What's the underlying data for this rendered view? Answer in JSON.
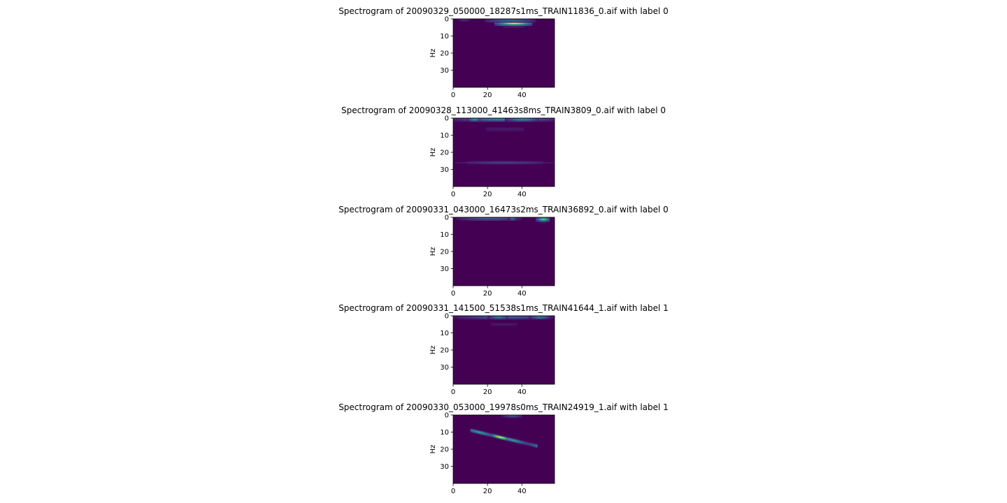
{
  "chart_data": [
    {
      "type": "heatmap",
      "title": "Spectrogram of 20090329_050000_18287s1ms_TRAIN11836_0.aif with label 0",
      "ylabel": "Hz",
      "xlabel": "",
      "xlim": [
        0,
        59
      ],
      "ylim": [
        40,
        0
      ],
      "xticks": [
        0,
        20,
        40
      ],
      "yticks": [
        0,
        10,
        20,
        30
      ],
      "colormap": "viridis",
      "background": "#440154",
      "blobs": [
        {
          "t0": 24,
          "t1": 46,
          "f": 2.5,
          "peak": 1.0,
          "spread_f": 1.0
        },
        {
          "t0": 18,
          "t1": 48,
          "f": 1.0,
          "peak": 0.35,
          "spread_f": 0.8
        },
        {
          "t0": 2,
          "t1": 10,
          "f": 0.5,
          "peak": 0.15,
          "spread_f": 0.6
        }
      ]
    },
    {
      "type": "heatmap",
      "title": "Spectrogram of 20090328_113000_41463s8ms_TRAIN3809_0.aif with label 0",
      "ylabel": "Hz",
      "xlabel": "",
      "xlim": [
        0,
        59
      ],
      "ylim": [
        40,
        0
      ],
      "xticks": [
        0,
        20,
        40
      ],
      "yticks": [
        0,
        10,
        20,
        30
      ],
      "colormap": "viridis",
      "background": "#440154",
      "blobs": [
        {
          "t0": 0,
          "t1": 59,
          "f": 0.8,
          "peak": 0.45,
          "spread_f": 0.8
        },
        {
          "t0": 8,
          "t1": 16,
          "f": 0.8,
          "peak": 0.55,
          "spread_f": 0.7
        },
        {
          "t0": 30,
          "t1": 50,
          "f": 0.8,
          "peak": 0.5,
          "spread_f": 0.7
        },
        {
          "t0": 0,
          "t1": 59,
          "f": 26.0,
          "peak": 0.2,
          "spread_f": 0.6
        },
        {
          "t0": 0,
          "t1": 59,
          "f": 6.5,
          "peak": 0.06,
          "spread_f": 2.0
        }
      ]
    },
    {
      "type": "heatmap",
      "title": "Spectrogram of 20090331_043000_16473s2ms_TRAIN36892_0.aif with label 0",
      "ylabel": "Hz",
      "xlabel": "",
      "xlim": [
        0,
        59
      ],
      "ylim": [
        40,
        0
      ],
      "xticks": [
        0,
        20,
        40
      ],
      "yticks": [
        0,
        10,
        20,
        30
      ],
      "colormap": "viridis",
      "background": "#440154",
      "blobs": [
        {
          "t0": 48,
          "t1": 56,
          "f": 1.2,
          "peak": 0.75,
          "spread_f": 0.9
        },
        {
          "t0": 2,
          "t1": 40,
          "f": 0.8,
          "peak": 0.3,
          "spread_f": 0.7
        },
        {
          "t0": 32,
          "t1": 36,
          "f": 0.8,
          "peak": 0.4,
          "spread_f": 0.7
        }
      ]
    },
    {
      "type": "heatmap",
      "title": "Spectrogram of 20090331_141500_51538s1ms_TRAIN41644_1.aif with label 1",
      "ylabel": "Hz",
      "xlabel": "",
      "xlim": [
        0,
        59
      ],
      "ylim": [
        40,
        0
      ],
      "xticks": [
        0,
        20,
        40
      ],
      "yticks": [
        0,
        10,
        20,
        30
      ],
      "colormap": "viridis",
      "background": "#440154",
      "blobs": [
        {
          "t0": 0,
          "t1": 59,
          "f": 0.8,
          "peak": 0.3,
          "spread_f": 0.8
        },
        {
          "t0": 20,
          "t1": 32,
          "f": 0.8,
          "peak": 0.45,
          "spread_f": 0.7
        },
        {
          "t0": 44,
          "t1": 56,
          "f": 0.8,
          "peak": 0.45,
          "spread_f": 0.7
        },
        {
          "t0": 8,
          "t1": 50,
          "f": 5.0,
          "peak": 0.06,
          "spread_f": 1.5
        }
      ]
    },
    {
      "type": "heatmap",
      "title": "Spectrogram of 20090330_053000_19978s0ms_TRAIN24919_1.aif with label 1",
      "ylabel": "Hz",
      "xlabel": "",
      "xlim": [
        0,
        59
      ],
      "ylim": [
        40,
        0
      ],
      "xticks": [
        0,
        20,
        40
      ],
      "yticks": [
        0,
        10,
        20,
        30
      ],
      "colormap": "viridis",
      "background": "#440154",
      "blobs": [
        {
          "t0": 28,
          "t1": 40,
          "f": 0.5,
          "peak": 0.25,
          "spread_f": 0.7
        }
      ],
      "sweep": {
        "t0": 10,
        "t1": 48,
        "f0": 9.0,
        "f1": 18.0,
        "peak": 0.6,
        "hot_t": 27,
        "hot_peak": 1.0,
        "spread_f": 0.7
      }
    }
  ]
}
